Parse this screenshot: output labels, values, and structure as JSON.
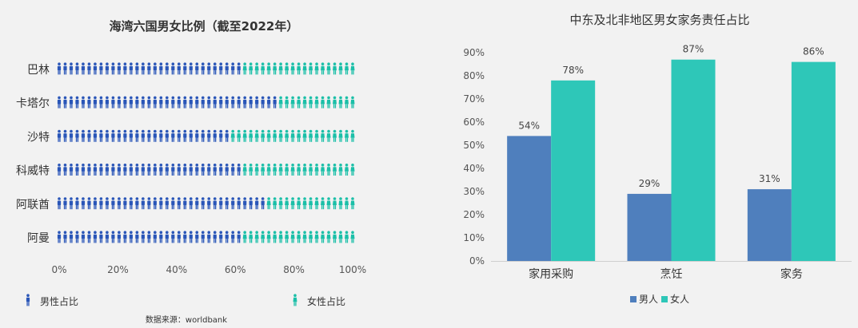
{
  "colors": {
    "male": "#2a56b8",
    "female": "#1bbfa8",
    "bar_male": "#4f7fbd",
    "bar_female": "#2ec7b8"
  },
  "chart_data": [
    {
      "type": "bar",
      "title": "海湾六国男女比例（截至2022年）",
      "categories": [
        "巴林",
        "卡塔尔",
        "沙特",
        "科威特",
        "阿联酋",
        "阿曼"
      ],
      "series": [
        {
          "name": "男性占比",
          "values": [
            61,
            73,
            58,
            61,
            70,
            61
          ]
        },
        {
          "name": "女性占比",
          "values": [
            39,
            27,
            42,
            39,
            30,
            39
          ]
        }
      ],
      "xlim": [
        0,
        100
      ],
      "xticks": [
        "0%",
        "20%",
        "40%",
        "60%",
        "80%",
        "100%"
      ],
      "legend_position": "bottom",
      "source": "数据来源：worldbank"
    },
    {
      "type": "bar",
      "title": "中东及北非地区男女家务责任占比",
      "categories": [
        "家用采购",
        "烹饪",
        "家务"
      ],
      "series": [
        {
          "name": "男人",
          "values": [
            54,
            29,
            31
          ]
        },
        {
          "name": "女人",
          "values": [
            78,
            87,
            86
          ]
        }
      ],
      "ylim": [
        0,
        90
      ],
      "yticks": [
        "0%",
        "10%",
        "20%",
        "30%",
        "40%",
        "50%",
        "60%",
        "70%",
        "80%",
        "90%"
      ],
      "data_labels": [
        [
          "54%",
          "29%",
          "31%"
        ],
        [
          "78%",
          "87%",
          "86%"
        ]
      ],
      "legend_position": "bottom"
    }
  ]
}
